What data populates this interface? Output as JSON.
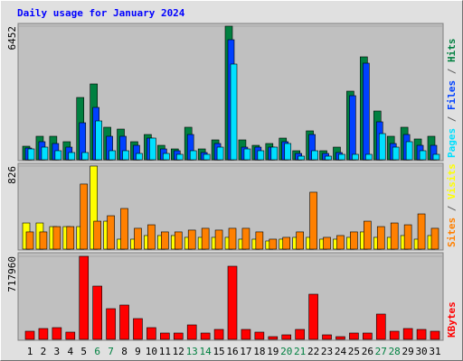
{
  "chart_data": [
    {
      "type": "bar",
      "title": "Daily usage for January 2024",
      "ylim": [
        0,
        6452
      ],
      "yticks": [
        6452
      ],
      "legend_separator": " / ",
      "series": [
        {
          "name": "Hits",
          "color": "#008040",
          "values": [
            654,
            1134,
            1134,
            872,
            3008,
            3662,
            1570,
            1482,
            872,
            1220,
            697,
            523,
            1570,
            523,
            959,
            6452,
            959,
            697,
            785,
            1046,
            436,
            1395,
            436,
            610,
            3313,
            4970,
            2354,
            1134,
            1570,
            1003,
            1134
          ]
        },
        {
          "name": "Files",
          "color": "#0040ff",
          "values": [
            567,
            872,
            785,
            610,
            1787,
            2528,
            1134,
            1134,
            697,
            1046,
            523,
            436,
            1220,
            349,
            785,
            5798,
            610,
            610,
            610,
            872,
            305,
            1220,
            305,
            349,
            3095,
            4665,
            1831,
            785,
            1220,
            697,
            697
          ]
        },
        {
          "name": "Pages",
          "color": "#00e0ff",
          "values": [
            523,
            610,
            436,
            349,
            349,
            1875,
            436,
            436,
            305,
            1046,
            305,
            262,
            436,
            262,
            610,
            4621,
            523,
            436,
            610,
            785,
            174,
            436,
            174,
            262,
            262,
            262,
            1264,
            610,
            872,
            436,
            262
          ]
        }
      ]
    },
    {
      "type": "bar",
      "ylim": [
        0,
        826
      ],
      "yticks": [
        826
      ],
      "legend_separator": " / ",
      "series": [
        {
          "name": "Visits",
          "color": "#ffff00",
          "values": [
            260,
            260,
            224,
            224,
            224,
            826,
            278,
            99,
            99,
            135,
            135,
            135,
            117,
            117,
            117,
            117,
            99,
            99,
            81,
            99,
            117,
            117,
            99,
            99,
            117,
            171,
            117,
            117,
            135,
            99,
            135
          ]
        },
        {
          "name": "Sites",
          "color": "#ff8000",
          "values": [
            171,
            171,
            224,
            224,
            647,
            278,
            332,
            404,
            207,
            242,
            171,
            171,
            189,
            207,
            189,
            207,
            207,
            171,
            99,
            117,
            171,
            566,
            117,
            135,
            171,
            278,
            224,
            260,
            242,
            350,
            207
          ]
        }
      ]
    },
    {
      "type": "bar",
      "ylim": [
        0,
        717960
      ],
      "yticks": [
        717960
      ],
      "categories": [
        "1",
        "2",
        "3",
        "4",
        "5",
        "6",
        "7",
        "8",
        "9",
        "10",
        "11",
        "12",
        "13",
        "14",
        "15",
        "16",
        "17",
        "18",
        "19",
        "20",
        "21",
        "22",
        "23",
        "24",
        "25",
        "26",
        "27",
        "28",
        "29",
        "30",
        "31"
      ],
      "category_colors": [
        "#000000",
        "#000000",
        "#000000",
        "#000000",
        "#000000",
        "#008040",
        "#008040",
        "#000000",
        "#000000",
        "#000000",
        "#000000",
        "#000000",
        "#008040",
        "#008040",
        "#000000",
        "#000000",
        "#000000",
        "#000000",
        "#000000",
        "#008040",
        "#008040",
        "#000000",
        "#000000",
        "#000000",
        "#000000",
        "#000000",
        "#008040",
        "#008040",
        "#000000",
        "#000000",
        "#000000"
      ],
      "series": [
        {
          "name": "KBytes",
          "color": "#ff0000",
          "values": [
            70236,
            93648,
            101452,
            62432,
            717960,
            460436,
            265336,
            296552,
            179492,
            101452,
            54628,
            54628,
            124864,
            54628,
            85844,
            632124,
            85844,
            62432,
            23412,
            39020,
            85844,
            390200,
            39020,
            23412,
            54628,
            54628,
            218512,
            70236,
            93648,
            85844,
            70236
          ]
        }
      ]
    }
  ]
}
